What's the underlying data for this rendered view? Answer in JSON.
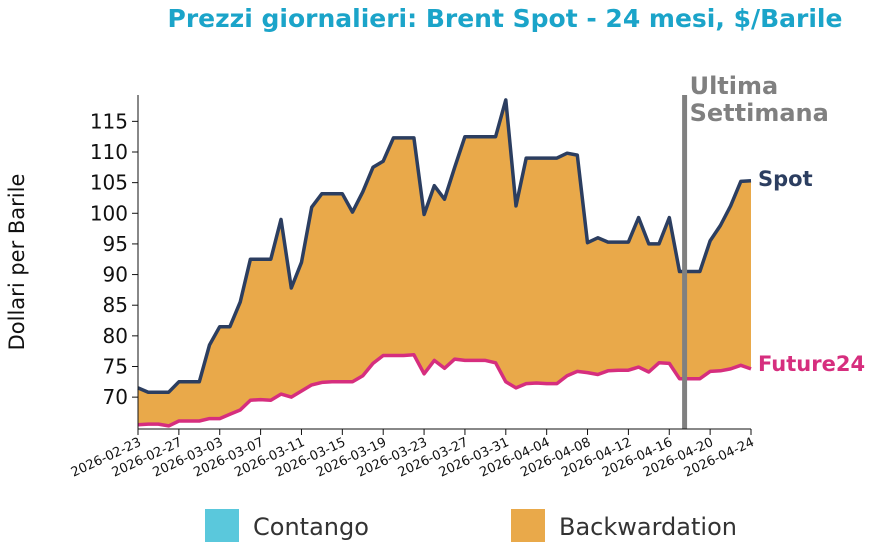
{
  "chart_data": {
    "type": "area",
    "title": "Prezzi giornalieri: Brent Spot - 24 mesi, $/Barile",
    "ylabel": "Dollari per Barile",
    "xlabel": "",
    "ylim": [
      64.8,
      119.3
    ],
    "yticks": [
      70,
      75,
      80,
      85,
      90,
      95,
      100,
      105,
      110,
      115
    ],
    "xticks": [
      "2026-02-23",
      "2026-02-27",
      "2026-03-03",
      "2026-03-07",
      "2026-03-11",
      "2026-03-15",
      "2026-03-19",
      "2026-03-23",
      "2026-03-27",
      "2026-03-31",
      "2026-04-04",
      "2026-04-08",
      "2026-04-12",
      "2026-04-16",
      "2026-04-20",
      "2026-04-24"
    ],
    "x": [
      0,
      1,
      2,
      3,
      4,
      5,
      6,
      7,
      8,
      9,
      10,
      11,
      12,
      13,
      14,
      15,
      16,
      17,
      18,
      19,
      20,
      21,
      22,
      23,
      24,
      25,
      26,
      27,
      28,
      29,
      30,
      31,
      32,
      33,
      34,
      35,
      36,
      37,
      38,
      39,
      40,
      41,
      42,
      43,
      44,
      45,
      46,
      47,
      48,
      49,
      50,
      51,
      52,
      53,
      54,
      55,
      56,
      57,
      58,
      59,
      60
    ],
    "x_start_date": "2026-02-23",
    "series": [
      {
        "name": "Spot",
        "color": "#2c3e60",
        "values": [
          71.5,
          70.8,
          70.8,
          70.8,
          72.5,
          72.5,
          72.5,
          78.5,
          81.5,
          81.5,
          85.5,
          92.5,
          92.5,
          92.5,
          99.0,
          87.8,
          92.0,
          101.0,
          103.2,
          103.2,
          103.2,
          100.2,
          103.5,
          107.5,
          108.5,
          112.3,
          112.3,
          112.3,
          99.8,
          104.5,
          102.3,
          107.5,
          112.5,
          112.5,
          112.5,
          112.5,
          118.5,
          101.2,
          109.0,
          109.0,
          109.0,
          109.0,
          109.8,
          109.5,
          95.2,
          96.0,
          95.3,
          95.3,
          95.3,
          99.3,
          95.0,
          95.0,
          99.3,
          90.5,
          90.5,
          90.5,
          95.5,
          98.0,
          101.2,
          105.2,
          105.3
        ]
      },
      {
        "name": "Future24",
        "color": "#d62e7e",
        "values": [
          65.5,
          65.6,
          65.6,
          65.3,
          66.1,
          66.1,
          66.1,
          66.5,
          66.5,
          67.2,
          67.9,
          69.5,
          69.6,
          69.5,
          70.5,
          70.0,
          71.0,
          72.0,
          72.4,
          72.5,
          72.5,
          72.5,
          73.5,
          75.5,
          76.8,
          76.8,
          76.8,
          76.9,
          73.8,
          76.0,
          74.7,
          76.2,
          76.0,
          76.0,
          76.0,
          75.6,
          72.5,
          71.5,
          72.2,
          72.3,
          72.2,
          72.2,
          73.5,
          74.2,
          74.0,
          73.7,
          74.3,
          74.4,
          74.4,
          74.9,
          74.1,
          75.6,
          75.5,
          73.0,
          73.0,
          73.0,
          74.2,
          74.3,
          74.6,
          75.2,
          74.6
        ]
      }
    ],
    "vline": {
      "x": 53.5,
      "label_line1": "Ultima",
      "label_line2": "Settimana"
    },
    "legend": {
      "position": "bottom",
      "items": [
        {
          "label": "Contango",
          "color": "#5ac8dc"
        },
        {
          "label": "Backwardation",
          "color": "#e9a94a"
        }
      ]
    },
    "colors": {
      "title": "#1ba4c9",
      "fill_backwardation": "#e9a94a",
      "fill_contango": "#5ac8dc",
      "vline": "#808080",
      "axis": "#111111"
    }
  }
}
